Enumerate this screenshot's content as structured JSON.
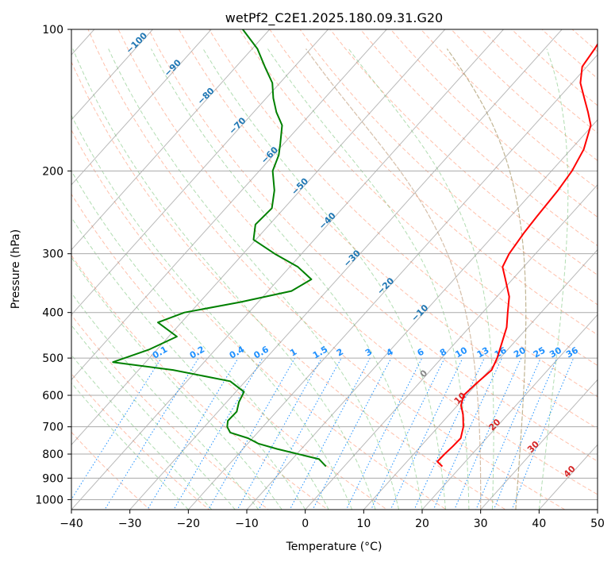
{
  "chart_data": {
    "type": "line",
    "title": "wetPf2_C2E1.2025.180.09.31.G20",
    "xlabel": "Temperature (°C)",
    "ylabel": "Pressure (hPa)",
    "xlim": [
      -40,
      50
    ],
    "ylim": [
      1050,
      100
    ],
    "y_scale": "log",
    "x_ticks": [
      "−40",
      "−30",
      "−20",
      "−10",
      "0",
      "10",
      "20",
      "30",
      "40",
      "50"
    ],
    "y_ticks": [
      "100",
      "200",
      "300",
      "400",
      "500",
      "600",
      "700",
      "800",
      "900",
      "1000"
    ],
    "grid": true,
    "skew": 45,
    "series": [
      {
        "color": "#ff0000",
        "points": [
          [
            850,
            16.8
          ],
          [
            830,
            15.2
          ],
          [
            800,
            15.3
          ],
          [
            770,
            15.5
          ],
          [
            740,
            15.6
          ],
          [
            700,
            14.3
          ],
          [
            660,
            12.4
          ],
          [
            630,
            10.6
          ],
          [
            600,
            9.5
          ],
          [
            570,
            9.8
          ],
          [
            530,
            10.4
          ],
          [
            500,
            9.5
          ],
          [
            460,
            7.8
          ],
          [
            430,
            6.4
          ],
          [
            400,
            4.3
          ],
          [
            370,
            2.1
          ],
          [
            340,
            -1.2
          ],
          [
            320,
            -3.6
          ],
          [
            300,
            -4.5
          ],
          [
            270,
            -5.2
          ],
          [
            250,
            -5.5
          ],
          [
            220,
            -5.9
          ],
          [
            200,
            -6.5
          ],
          [
            180,
            -7.8
          ],
          [
            160,
            -10.3
          ],
          [
            150,
            -12.8
          ],
          [
            140,
            -15.6
          ],
          [
            130,
            -18.6
          ],
          [
            120,
            -20.8
          ],
          [
            110,
            -21.4
          ],
          [
            100,
            -22.3
          ]
        ]
      },
      {
        "color": "#008000",
        "points": [
          [
            850,
            -3.1
          ],
          [
            820,
            -5.4
          ],
          [
            780,
            -14.2
          ],
          [
            760,
            -18.2
          ],
          [
            740,
            -20.8
          ],
          [
            720,
            -24.7
          ],
          [
            700,
            -26.1
          ],
          [
            680,
            -26.9
          ],
          [
            650,
            -26.8
          ],
          [
            620,
            -27.9
          ],
          [
            590,
            -28.6
          ],
          [
            560,
            -32.6
          ],
          [
            530,
            -44.1
          ],
          [
            510,
            -55.6
          ],
          [
            480,
            -51.4
          ],
          [
            450,
            -48.6
          ],
          [
            420,
            -54.0
          ],
          [
            400,
            -51.0
          ],
          [
            380,
            -43.0
          ],
          [
            360,
            -36.0
          ],
          [
            340,
            -34.4
          ],
          [
            320,
            -38.6
          ],
          [
            300,
            -44.6
          ],
          [
            280,
            -50.4
          ],
          [
            260,
            -52.4
          ],
          [
            240,
            -52.1
          ],
          [
            220,
            -54.4
          ],
          [
            200,
            -57.7
          ],
          [
            185,
            -59.1
          ],
          [
            175,
            -60.6
          ],
          [
            160,
            -63.1
          ],
          [
            150,
            -66.1
          ],
          [
            140,
            -68.8
          ],
          [
            130,
            -71.3
          ],
          [
            120,
            -75.1
          ],
          [
            110,
            -79.1
          ],
          [
            100,
            -84.6
          ]
        ]
      }
    ],
    "dry_adiabat_color": "#ff8c66",
    "moist_adiabat_color": "#66bb66",
    "mixing_ratio_color": "#1e90ff",
    "isotherm_color": "#808080",
    "theta_e_color": "#c4a484",
    "isotherm_labels": [
      "−100",
      "−90",
      "−80",
      "−70",
      "−60",
      "−50",
      "−40",
      "−30",
      "−20",
      "−10"
    ],
    "mixing_ratio_labels": [
      "0.1",
      "0.2",
      "0.4",
      "0.6",
      "1",
      "1.5",
      "2",
      "3",
      "4",
      "6",
      "8",
      "10",
      "13",
      "16",
      "20",
      "25",
      "30",
      "36"
    ],
    "mixing_ratio_values": [
      0.1,
      0.2,
      0.4,
      0.6,
      1,
      1.5,
      2,
      3,
      4,
      6,
      8,
      10,
      13,
      16,
      20,
      25,
      30,
      36
    ],
    "hot_isotherm_labels": [
      "0",
      "10",
      "20",
      "30",
      "40"
    ]
  }
}
